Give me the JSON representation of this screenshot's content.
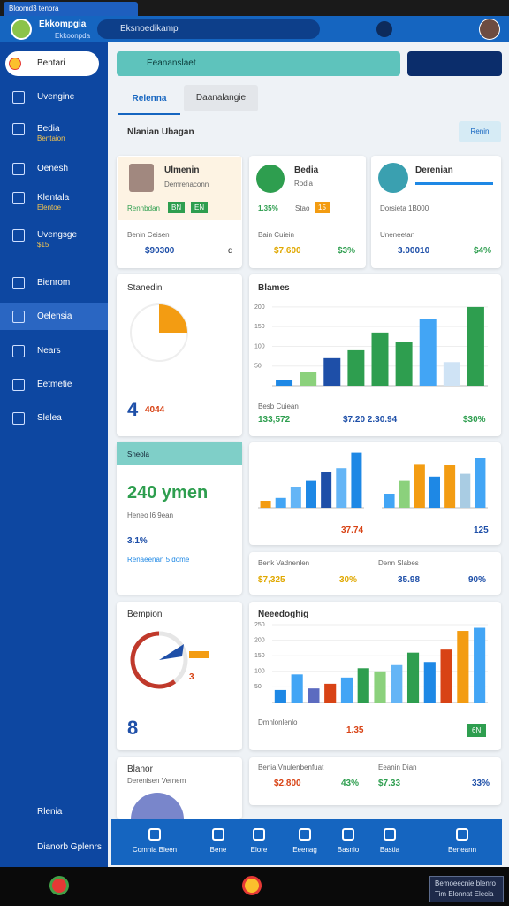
{
  "browser": {
    "tab": "Bloomd3 tenora"
  },
  "header": {
    "title": "Ekkompgia",
    "subtitle": "Ekkoonpda",
    "search": "Eksnoedikamp"
  },
  "sidebar": {
    "items": [
      {
        "label": "Bentari"
      },
      {
        "label": "Uvengine"
      },
      {
        "label": "Bedia",
        "sub": "Bentaion"
      },
      {
        "label": "Oenesh"
      },
      {
        "label": "Klentala",
        "sub": "Elentoe"
      },
      {
        "label": "Uvengsge",
        "sub": "$15"
      },
      {
        "label": "Bienrom"
      },
      {
        "label": "Oelensia"
      },
      {
        "label": "Nears"
      },
      {
        "label": "Eetmetie"
      },
      {
        "label": "Slelea"
      }
    ],
    "footer": [
      "Rlenia",
      "Dianorb Gplenrs"
    ]
  },
  "filter": {
    "text": "Eeananslaet"
  },
  "tabs": [
    "Relenna",
    "Daanalangie"
  ],
  "section": {
    "title": "Nlanian Ubagan",
    "button": "Renin"
  },
  "cards": [
    {
      "name": "Ulmenin",
      "role": "Demrenaconn",
      "tag": "Rennbdan",
      "badges": [
        "BN",
        "EN"
      ],
      "label": "Benin Ceisen",
      "value": "$90300",
      "extra": "d"
    },
    {
      "name": "Bedia",
      "sub": "Rodia",
      "pct": "1.35%",
      "tag": "Stao",
      "badge": "15",
      "label": "Bain Cuiein",
      "value": "$7.600",
      "extra": "$3%"
    },
    {
      "name": "Derenian",
      "sub": "Dorsieta 1B000",
      "label": "Uneneetan",
      "value": "3.00010",
      "extra": "$4%"
    }
  ],
  "stanedin": {
    "title": "Stanedin",
    "big": "4",
    "small": "4044",
    "pie": 25
  },
  "blames": {
    "title": "Blames",
    "label": "Besb Cuiean",
    "value": "133,572",
    "amount": "$7.20 2.30.94",
    "pct": "$30%",
    "chart": {
      "ylim": [
        0,
        220
      ],
      "yticks": [
        50,
        100,
        150,
        200
      ],
      "values": [
        15,
        35,
        70,
        90,
        135,
        110,
        170,
        60,
        200
      ],
      "colors": [
        "#1e88e5",
        "#8bd17c",
        "#1e4fa8",
        "#2e9e4f",
        "#2e9e4f",
        "#2e9e4f",
        "#42a5f5",
        "#cfe3f5",
        "#2e9e4f"
      ]
    }
  },
  "sneola": {
    "title": "Sneola",
    "big": "240 ymen",
    "sub": "Heneo l6 9ean",
    "pct": "3.1%",
    "note": "Renaeenan 5 dome"
  },
  "trend": [
    {
      "value": "37.74",
      "chart": {
        "ylim": [
          0,
          80
        ],
        "values": [
          10,
          14,
          30,
          38,
          50,
          56,
          78
        ],
        "colors": [
          "#f39c12",
          "#42a5f5",
          "#64b5f6",
          "#1e88e5",
          "#1e4fa8",
          "#64b5f6",
          "#1e88e5"
        ]
      }
    },
    {
      "value": "125",
      "chart": {
        "ylim": [
          0,
          80
        ],
        "values": [
          20,
          38,
          62,
          44,
          60,
          48,
          70
        ],
        "colors": [
          "#42a5f5",
          "#8bd17c",
          "#f39c12",
          "#1e88e5",
          "#f39c12",
          "#a9cce3",
          "#42a5f5"
        ]
      }
    }
  ],
  "kpis": [
    {
      "label": "Benk Vadnenlen",
      "value": "$7,325",
      "pct": "30%"
    },
    {
      "label": "Denn Slabes",
      "value": "35.98",
      "pct": "90%"
    }
  ],
  "bempion": {
    "title": "Bempion",
    "donut": 60,
    "side": "3",
    "big": "8"
  },
  "neeed": {
    "title": "Neeedoghig",
    "label": "Dmnlonlenlo",
    "value": "1.35",
    "badge": "6N",
    "chart": {
      "ylim": [
        0,
        250
      ],
      "yticks": [
        50,
        100,
        150,
        200,
        250
      ],
      "values": [
        40,
        90,
        45,
        60,
        80,
        110,
        100,
        120,
        160,
        130,
        170,
        230,
        240
      ],
      "colors": [
        "#1e88e5",
        "#42a5f5",
        "#5c6bc0",
        "#d84315",
        "#42a5f5",
        "#2e9e4f",
        "#8bd17c",
        "#64b5f6",
        "#2e9e4f",
        "#1e88e5",
        "#d84315",
        "#f39c12",
        "#42a5f5"
      ]
    }
  },
  "blanor": {
    "title": "Blanor",
    "sub": "Derenisen Vernem"
  },
  "kpis2": [
    {
      "label": "Benia Vnulenbenfuat",
      "value": "$2.800",
      "pct": "43%"
    },
    {
      "label": "Eeanin Dian",
      "value": "$7.33",
      "pct": "33%"
    }
  ],
  "nav": [
    "Comnia Bleen",
    "Bene",
    "Elore",
    "Eeenag",
    "Basnio",
    "Bastia",
    "Beneann"
  ],
  "taskbar": {
    "notice": [
      "Bemoeecnie blenro",
      "Tim Elonnat Elecia"
    ]
  }
}
